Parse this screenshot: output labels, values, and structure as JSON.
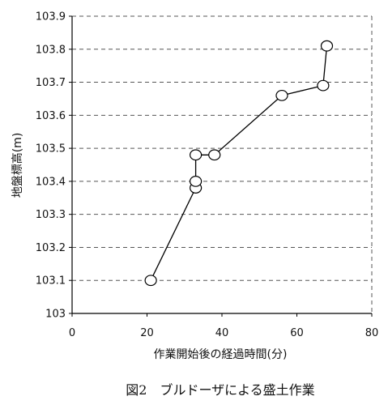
{
  "chart_data": {
    "type": "line",
    "xlabel": "作業開始後の経過時間(分)",
    "ylabel": "地盤標高(m)",
    "xlim": [
      0,
      80
    ],
    "ylim": [
      103.0,
      103.9
    ],
    "x_ticks": [
      "0",
      "20",
      "40",
      "60",
      "80"
    ],
    "y_ticks": [
      "103",
      "103.1",
      "103.2",
      "103.3",
      "103.4",
      "103.5",
      "103.6",
      "103.7",
      "103.8",
      "103.9"
    ],
    "grid": true,
    "series": [
      {
        "x": [
          21,
          33,
          33,
          33,
          38,
          56,
          67,
          68
        ],
        "y": [
          103.1,
          103.38,
          103.4,
          103.48,
          103.48,
          103.66,
          103.69,
          103.81
        ]
      }
    ]
  },
  "caption": "図2　ブルドーザによる盛土作業",
  "colors": {
    "line": "#000000",
    "marker_fill": "#ffffff",
    "grid": "#555555"
  }
}
